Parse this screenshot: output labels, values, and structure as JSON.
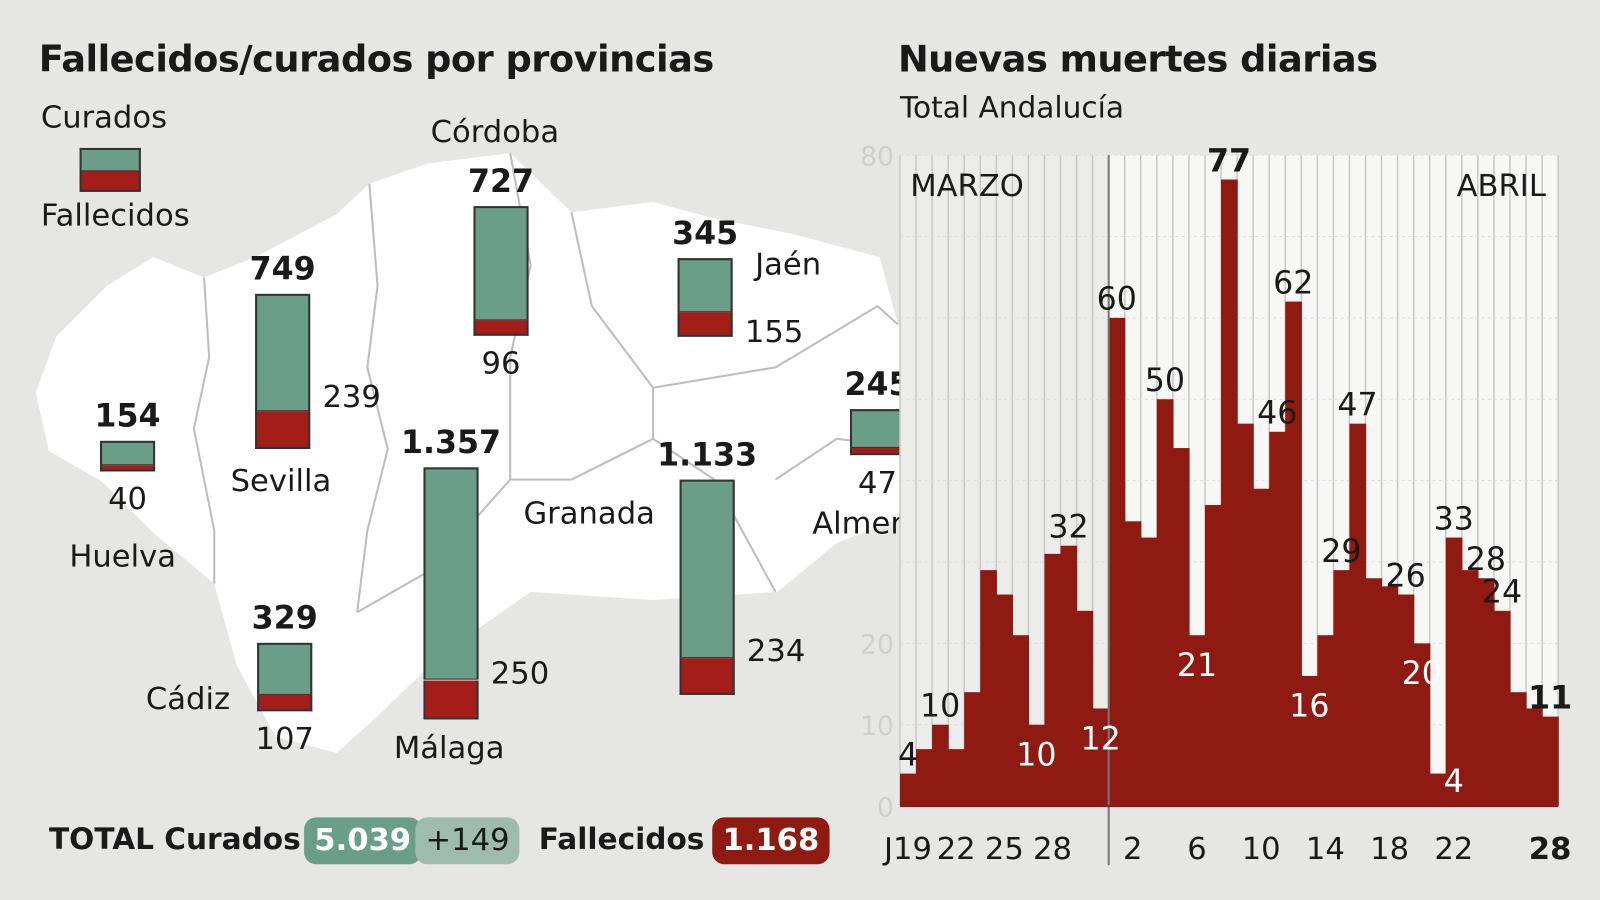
{
  "left": {
    "title": "Fallecidos/curados por provincias",
    "legend": {
      "curados": "Curados",
      "fallecidos": "Fallecidos"
    },
    "colors": {
      "curados": "#6b9e88",
      "fallecidos": "#a51d18",
      "map": "#ffffff"
    },
    "provinces": [
      {
        "name": "Huelva",
        "curados": 154,
        "curados_label": "154",
        "fallecidos": 40,
        "fallecidos_label": "40"
      },
      {
        "name": "Sevilla",
        "curados": 749,
        "curados_label": "749",
        "fallecidos": 239,
        "fallecidos_label": "239"
      },
      {
        "name": "Córdoba",
        "curados": 727,
        "curados_label": "727",
        "fallecidos": 96,
        "fallecidos_label": "96"
      },
      {
        "name": "Jaén",
        "curados": 345,
        "curados_label": "345",
        "fallecidos": 155,
        "fallecidos_label": "155"
      },
      {
        "name": "Almería",
        "curados": 245,
        "curados_label": "245",
        "fallecidos": 47,
        "fallecidos_label": "47"
      },
      {
        "name": "Cádiz",
        "curados": 329,
        "curados_label": "329",
        "fallecidos": 107,
        "fallecidos_label": "107"
      },
      {
        "name": "Málaga",
        "curados": 1357,
        "curados_label": "1.357",
        "fallecidos": 250,
        "fallecidos_label": "250"
      },
      {
        "name": "Granada",
        "curados": 1133,
        "curados_label": "1.133",
        "fallecidos": 234,
        "fallecidos_label": "234"
      }
    ],
    "totals": {
      "label_curados": "TOTAL Curados",
      "curados": "5.039",
      "curados_new": "+149",
      "label_fallecidos": "Fallecidos",
      "fallecidos": "1.168"
    }
  },
  "chart_data": {
    "type": "bar",
    "title": "Nuevas muertes diarias",
    "subtitle": "Total Andalucía",
    "xlabel": "",
    "ylabel": "",
    "ylim": [
      0,
      80
    ],
    "y_ticks": [
      "0",
      "10",
      "20",
      "80"
    ],
    "month_labels": [
      "MARZO",
      "ABRIL"
    ],
    "categories": [
      "19 mar",
      "20 mar",
      "21 mar",
      "22 mar",
      "23 mar",
      "24 mar",
      "25 mar",
      "26 mar",
      "27 mar",
      "28 mar",
      "29 mar",
      "30 mar",
      "31 mar",
      "1 abr",
      "2 abr",
      "3 abr",
      "4 abr",
      "5 abr",
      "6 abr",
      "7 abr",
      "8 abr",
      "9 abr",
      "10 abr",
      "11 abr",
      "12 abr",
      "13 abr",
      "14 abr",
      "15 abr",
      "16 abr",
      "17 abr",
      "18 abr",
      "19 abr",
      "20 abr",
      "21 abr",
      "22 abr",
      "23 abr",
      "24 abr",
      "25 abr",
      "26 abr",
      "27 abr",
      "28 abr"
    ],
    "values": [
      4,
      7,
      10,
      7,
      14,
      29,
      26,
      21,
      10,
      31,
      32,
      24,
      12,
      60,
      35,
      33,
      50,
      44,
      21,
      37,
      77,
      47,
      39,
      46,
      62,
      16,
      21,
      29,
      47,
      28,
      27,
      26,
      20,
      4,
      33,
      29,
      28,
      24,
      14,
      12,
      11
    ],
    "x_tick_labels": [
      {
        "index": 0,
        "text": "J19"
      },
      {
        "index": 3,
        "text": "22"
      },
      {
        "index": 6,
        "text": "25"
      },
      {
        "index": 9,
        "text": "28"
      },
      {
        "index": 14,
        "text": "2"
      },
      {
        "index": 18,
        "text": "6"
      },
      {
        "index": 22,
        "text": "10"
      },
      {
        "index": 26,
        "text": "14"
      },
      {
        "index": 30,
        "text": "18"
      },
      {
        "index": 34,
        "text": "22"
      },
      {
        "index": 40,
        "text": "28",
        "bold": true
      }
    ],
    "data_labels": [
      {
        "index": 0,
        "text": "4",
        "inside": false
      },
      {
        "index": 2,
        "text": "10",
        "inside": false
      },
      {
        "index": 8,
        "text": "10",
        "inside": true
      },
      {
        "index": 10,
        "text": "32",
        "inside": false
      },
      {
        "index": 12,
        "text": "12",
        "inside": true
      },
      {
        "index": 13,
        "text": "60",
        "inside": false
      },
      {
        "index": 16,
        "text": "50",
        "inside": false
      },
      {
        "index": 18,
        "text": "21",
        "inside": true
      },
      {
        "index": 20,
        "text": "77",
        "inside": false,
        "bold": true
      },
      {
        "index": 23,
        "text": "46",
        "inside": false
      },
      {
        "index": 24,
        "text": "62",
        "inside": false
      },
      {
        "index": 25,
        "text": "16",
        "inside": true
      },
      {
        "index": 27,
        "text": "29",
        "inside": false
      },
      {
        "index": 28,
        "text": "47",
        "inside": false
      },
      {
        "index": 31,
        "text": "26",
        "inside": false
      },
      {
        "index": 32,
        "text": "20",
        "inside": true
      },
      {
        "index": 33,
        "text": "4",
        "inside": true
      },
      {
        "index": 34,
        "text": "33",
        "inside": false
      },
      {
        "index": 36,
        "text": "28",
        "inside": false
      },
      {
        "index": 37,
        "text": "24",
        "inside": false
      },
      {
        "index": 40,
        "text": "11",
        "inside": false,
        "bold": true
      }
    ],
    "bar_color": "#8e1a12",
    "grid": true
  }
}
